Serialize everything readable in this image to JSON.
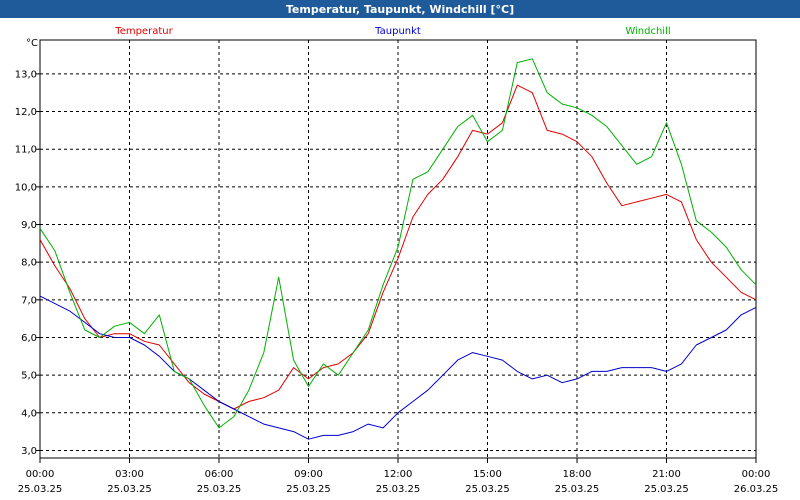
{
  "window": {
    "title": "Temperatur, Taupunkt, Windchill [°C]"
  },
  "colors": {
    "temperatur": "#e00000",
    "taupunkt": "#0000cc",
    "windchill": "#00b000",
    "titlebar": "#1f5a9a"
  },
  "chart_data": {
    "type": "line",
    "title": "Temperatur, Taupunkt, Windchill [°C]",
    "ylabel": "°C",
    "ylim": [
      2.8,
      13.9
    ],
    "xlim": [
      0,
      24
    ],
    "grid": true,
    "yticks": [
      3.0,
      4.0,
      5.0,
      6.0,
      7.0,
      8.0,
      9.0,
      10.0,
      11.0,
      12.0,
      13.0
    ],
    "ytick_labels": [
      "3,0",
      "4,0",
      "5,0",
      "6,0",
      "7,0",
      "8,0",
      "9,0",
      "10,0",
      "11,0",
      "12,0",
      "13,0"
    ],
    "xticks": [
      {
        "x": 0,
        "time": "00:00",
        "date": "25.03.25"
      },
      {
        "x": 3,
        "time": "03:00",
        "date": "25.03.25"
      },
      {
        "x": 6,
        "time": "06:00",
        "date": "25.03.25"
      },
      {
        "x": 9,
        "time": "09:00",
        "date": "25.03.25"
      },
      {
        "x": 12,
        "time": "12:00",
        "date": "25.03.25"
      },
      {
        "x": 15,
        "time": "15:00",
        "date": "25.03.25"
      },
      {
        "x": 18,
        "time": "18:00",
        "date": "25.03.25"
      },
      {
        "x": 21,
        "time": "21:00",
        "date": "25.03.25"
      },
      {
        "x": 24,
        "time": "00:00",
        "date": "26.03.25"
      }
    ],
    "series": [
      {
        "name": "Temperatur",
        "color": "#e00000",
        "x": [
          0,
          0.5,
          1,
          1.5,
          2,
          2.5,
          3,
          3.5,
          4,
          4.5,
          5,
          5.5,
          6,
          6.5,
          7,
          7.5,
          8,
          8.5,
          9,
          9.5,
          10,
          10.5,
          11,
          11.5,
          12,
          12.5,
          13,
          13.5,
          14,
          14.5,
          15,
          15.5,
          16,
          16.5,
          17,
          17.5,
          18,
          18.5,
          19,
          19.5,
          20,
          20.5,
          21,
          21.5,
          22,
          22.5,
          23,
          23.5,
          24
        ],
        "values": [
          8.6,
          7.9,
          7.3,
          6.5,
          6.0,
          6.1,
          6.1,
          5.9,
          5.8,
          5.3,
          4.8,
          4.5,
          4.3,
          4.1,
          4.3,
          4.4,
          4.6,
          5.2,
          4.9,
          5.2,
          5.3,
          5.6,
          6.1,
          7.2,
          8.1,
          9.2,
          9.8,
          10.2,
          10.8,
          11.5,
          11.4,
          11.7,
          12.7,
          12.5,
          11.5,
          11.4,
          11.2,
          10.8,
          10.1,
          9.5,
          9.6,
          9.7,
          9.8,
          9.6,
          8.6,
          8.0,
          7.6,
          7.2,
          7.0
        ]
      },
      {
        "name": "Taupunkt",
        "color": "#0000cc",
        "x": [
          0,
          0.5,
          1,
          1.5,
          2,
          2.5,
          3,
          3.5,
          4,
          4.5,
          5,
          5.5,
          6,
          6.5,
          7,
          7.5,
          8,
          8.5,
          9,
          9.5,
          10,
          10.5,
          11,
          11.5,
          12,
          12.5,
          13,
          13.5,
          14,
          14.5,
          15,
          15.5,
          16,
          16.5,
          17,
          17.5,
          18,
          18.5,
          19,
          19.5,
          20,
          20.5,
          21,
          21.5,
          22,
          22.5,
          23,
          23.5,
          24
        ],
        "values": [
          7.1,
          6.9,
          6.7,
          6.4,
          6.1,
          6.0,
          6.0,
          5.8,
          5.5,
          5.1,
          4.9,
          4.6,
          4.3,
          4.1,
          3.9,
          3.7,
          3.6,
          3.5,
          3.3,
          3.4,
          3.4,
          3.5,
          3.7,
          3.6,
          4.0,
          4.3,
          4.6,
          5.0,
          5.4,
          5.6,
          5.5,
          5.4,
          5.1,
          4.9,
          5.0,
          4.8,
          4.9,
          5.1,
          5.1,
          5.2,
          5.2,
          5.2,
          5.1,
          5.3,
          5.8,
          6.0,
          6.2,
          6.6,
          6.8
        ]
      },
      {
        "name": "Windchill",
        "color": "#00b000",
        "x": [
          0,
          0.5,
          1,
          1.5,
          2,
          2.5,
          3,
          3.5,
          4,
          4.5,
          5,
          5.5,
          6,
          6.5,
          7,
          7.5,
          8,
          8.5,
          9,
          9.5,
          10,
          10.5,
          11,
          11.5,
          12,
          12.5,
          13,
          13.5,
          14,
          14.5,
          15,
          15.5,
          16,
          16.5,
          17,
          17.5,
          18,
          18.5,
          19,
          19.5,
          20,
          20.5,
          21,
          21.5,
          22,
          22.5,
          23,
          23.5,
          24
        ],
        "values": [
          8.9,
          8.3,
          7.2,
          6.2,
          6.0,
          6.3,
          6.4,
          6.1,
          6.6,
          5.1,
          4.9,
          4.2,
          3.6,
          3.9,
          4.6,
          5.6,
          7.6,
          5.4,
          4.7,
          5.3,
          5.0,
          5.6,
          6.2,
          7.4,
          8.4,
          10.2,
          10.4,
          11.0,
          11.6,
          11.9,
          11.2,
          11.5,
          13.3,
          13.4,
          12.5,
          12.2,
          12.1,
          11.9,
          11.6,
          11.1,
          10.6,
          10.8,
          11.7,
          10.6,
          9.1,
          8.8,
          8.4,
          7.8,
          7.4
        ]
      }
    ]
  }
}
